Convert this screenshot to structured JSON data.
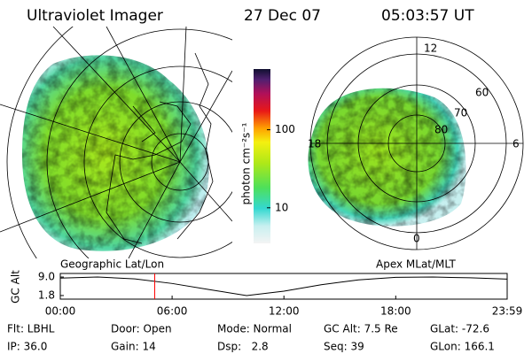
{
  "header": {
    "title": "Ultraviolet Imager",
    "date": "27 Dec 07",
    "time": "05:03:57 UT"
  },
  "colorbar": {
    "label": "photon cm⁻²s⁻¹",
    "scale": "log",
    "lim": [
      3.5,
      600
    ],
    "ticks": [
      10,
      100
    ]
  },
  "polar": {
    "mlt_labels": [
      "12",
      "18",
      "6",
      "0"
    ],
    "mlat_labels": [
      "60",
      "70",
      "80"
    ]
  },
  "panels": {
    "left": "Geographic Lat/Lon",
    "right": "Apex MLat/MLT"
  },
  "chart_data": {
    "type": "line",
    "ylabel": "GC Alt",
    "x": [
      0,
      2,
      4,
      6,
      8,
      10,
      12,
      14,
      16,
      18,
      20,
      22,
      23.98
    ],
    "values": [
      8.6,
      9.0,
      8.3,
      6.5,
      4.1,
      1.8,
      3.5,
      6.0,
      7.9,
      8.9,
      9.0,
      8.7,
      8.2
    ],
    "color": "#000000",
    "xlim": [
      0,
      23.98
    ],
    "ylim": [
      0.4,
      10.4
    ],
    "xticks": [
      {
        "value": 0,
        "label": "00:00"
      },
      {
        "value": 6,
        "label": "06:00"
      },
      {
        "value": 12,
        "label": "12:00"
      },
      {
        "value": 18,
        "label": "18:00"
      },
      {
        "value": 23.98,
        "label": "23:59"
      }
    ],
    "yticks": [
      {
        "value": 9.0,
        "label": "9.0"
      },
      {
        "value": 1.8,
        "label": "1.8"
      }
    ],
    "marker": {
      "value": 5.066,
      "color": "#ff0000"
    }
  },
  "info": {
    "rows": [
      [
        "Flt: LBHL",
        "Door: Open",
        "Mode: Normal",
        "GC Alt: 7.5 Re",
        "GLat: -72.6"
      ],
      [
        "IP: 36.0",
        "Gain: 14",
        "Dsp:   2.8",
        "Seq: 39",
        "GLon: 166.1"
      ]
    ]
  }
}
